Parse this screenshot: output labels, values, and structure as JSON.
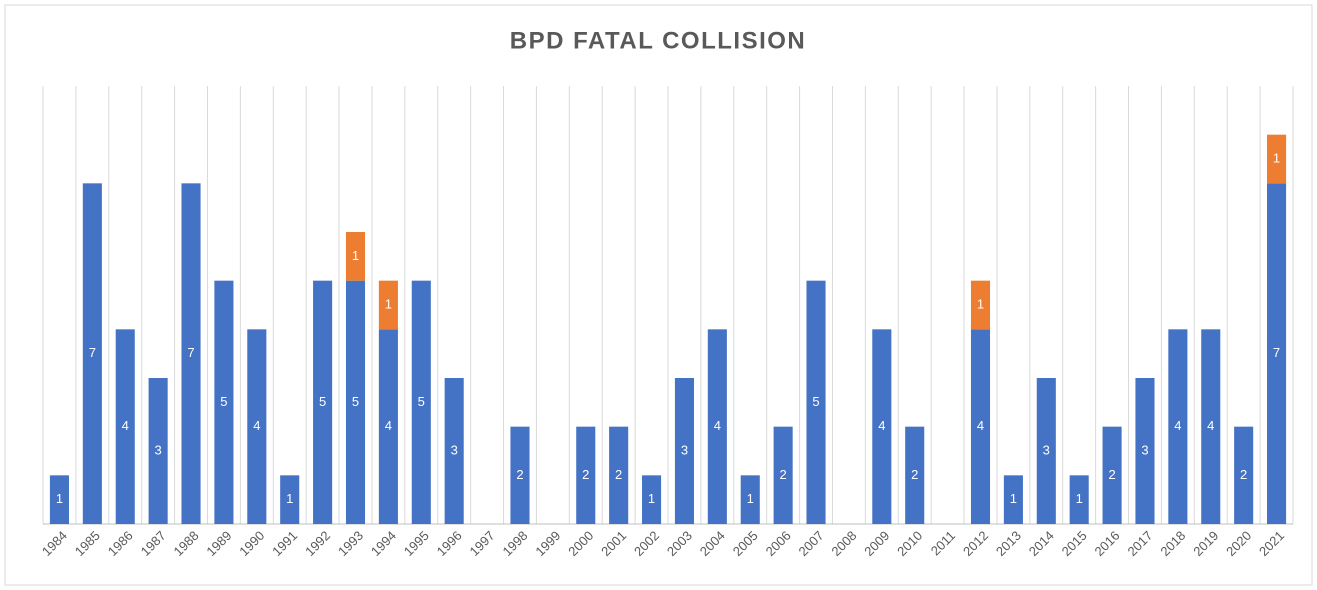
{
  "chart_data": {
    "type": "stacked_bar",
    "title": "BPD FATAL COLLISION",
    "categories": [
      "1984",
      "1985",
      "1986",
      "1987",
      "1988",
      "1989",
      "1990",
      "1991",
      "1992",
      "1993",
      "1994",
      "1995",
      "1996",
      "1997",
      "1998",
      "1999",
      "2000",
      "2001",
      "2002",
      "2003",
      "2004",
      "2005",
      "2006",
      "2007",
      "2008",
      "2009",
      "2010",
      "2011",
      "2012",
      "2013",
      "2014",
      "2015",
      "2016",
      "2017",
      "2018",
      "2019",
      "2020",
      "2021"
    ],
    "series": [
      {
        "color": "#4472c4",
        "values": [
          1,
          7,
          4,
          3,
          7,
          5,
          4,
          1,
          5,
          5,
          4,
          5,
          3,
          null,
          2,
          null,
          2,
          2,
          1,
          3,
          4,
          1,
          2,
          5,
          null,
          4,
          2,
          null,
          4,
          1,
          3,
          1,
          2,
          3,
          4,
          4,
          2,
          7
        ]
      },
      {
        "color": "#ed7d31",
        "values": [
          null,
          null,
          null,
          null,
          null,
          null,
          null,
          null,
          null,
          1,
          1,
          null,
          null,
          null,
          null,
          null,
          null,
          null,
          null,
          null,
          null,
          null,
          null,
          null,
          null,
          null,
          null,
          null,
          1,
          null,
          null,
          null,
          null,
          null,
          null,
          null,
          null,
          1
        ]
      }
    ],
    "ylim": [
      0,
      9
    ]
  }
}
